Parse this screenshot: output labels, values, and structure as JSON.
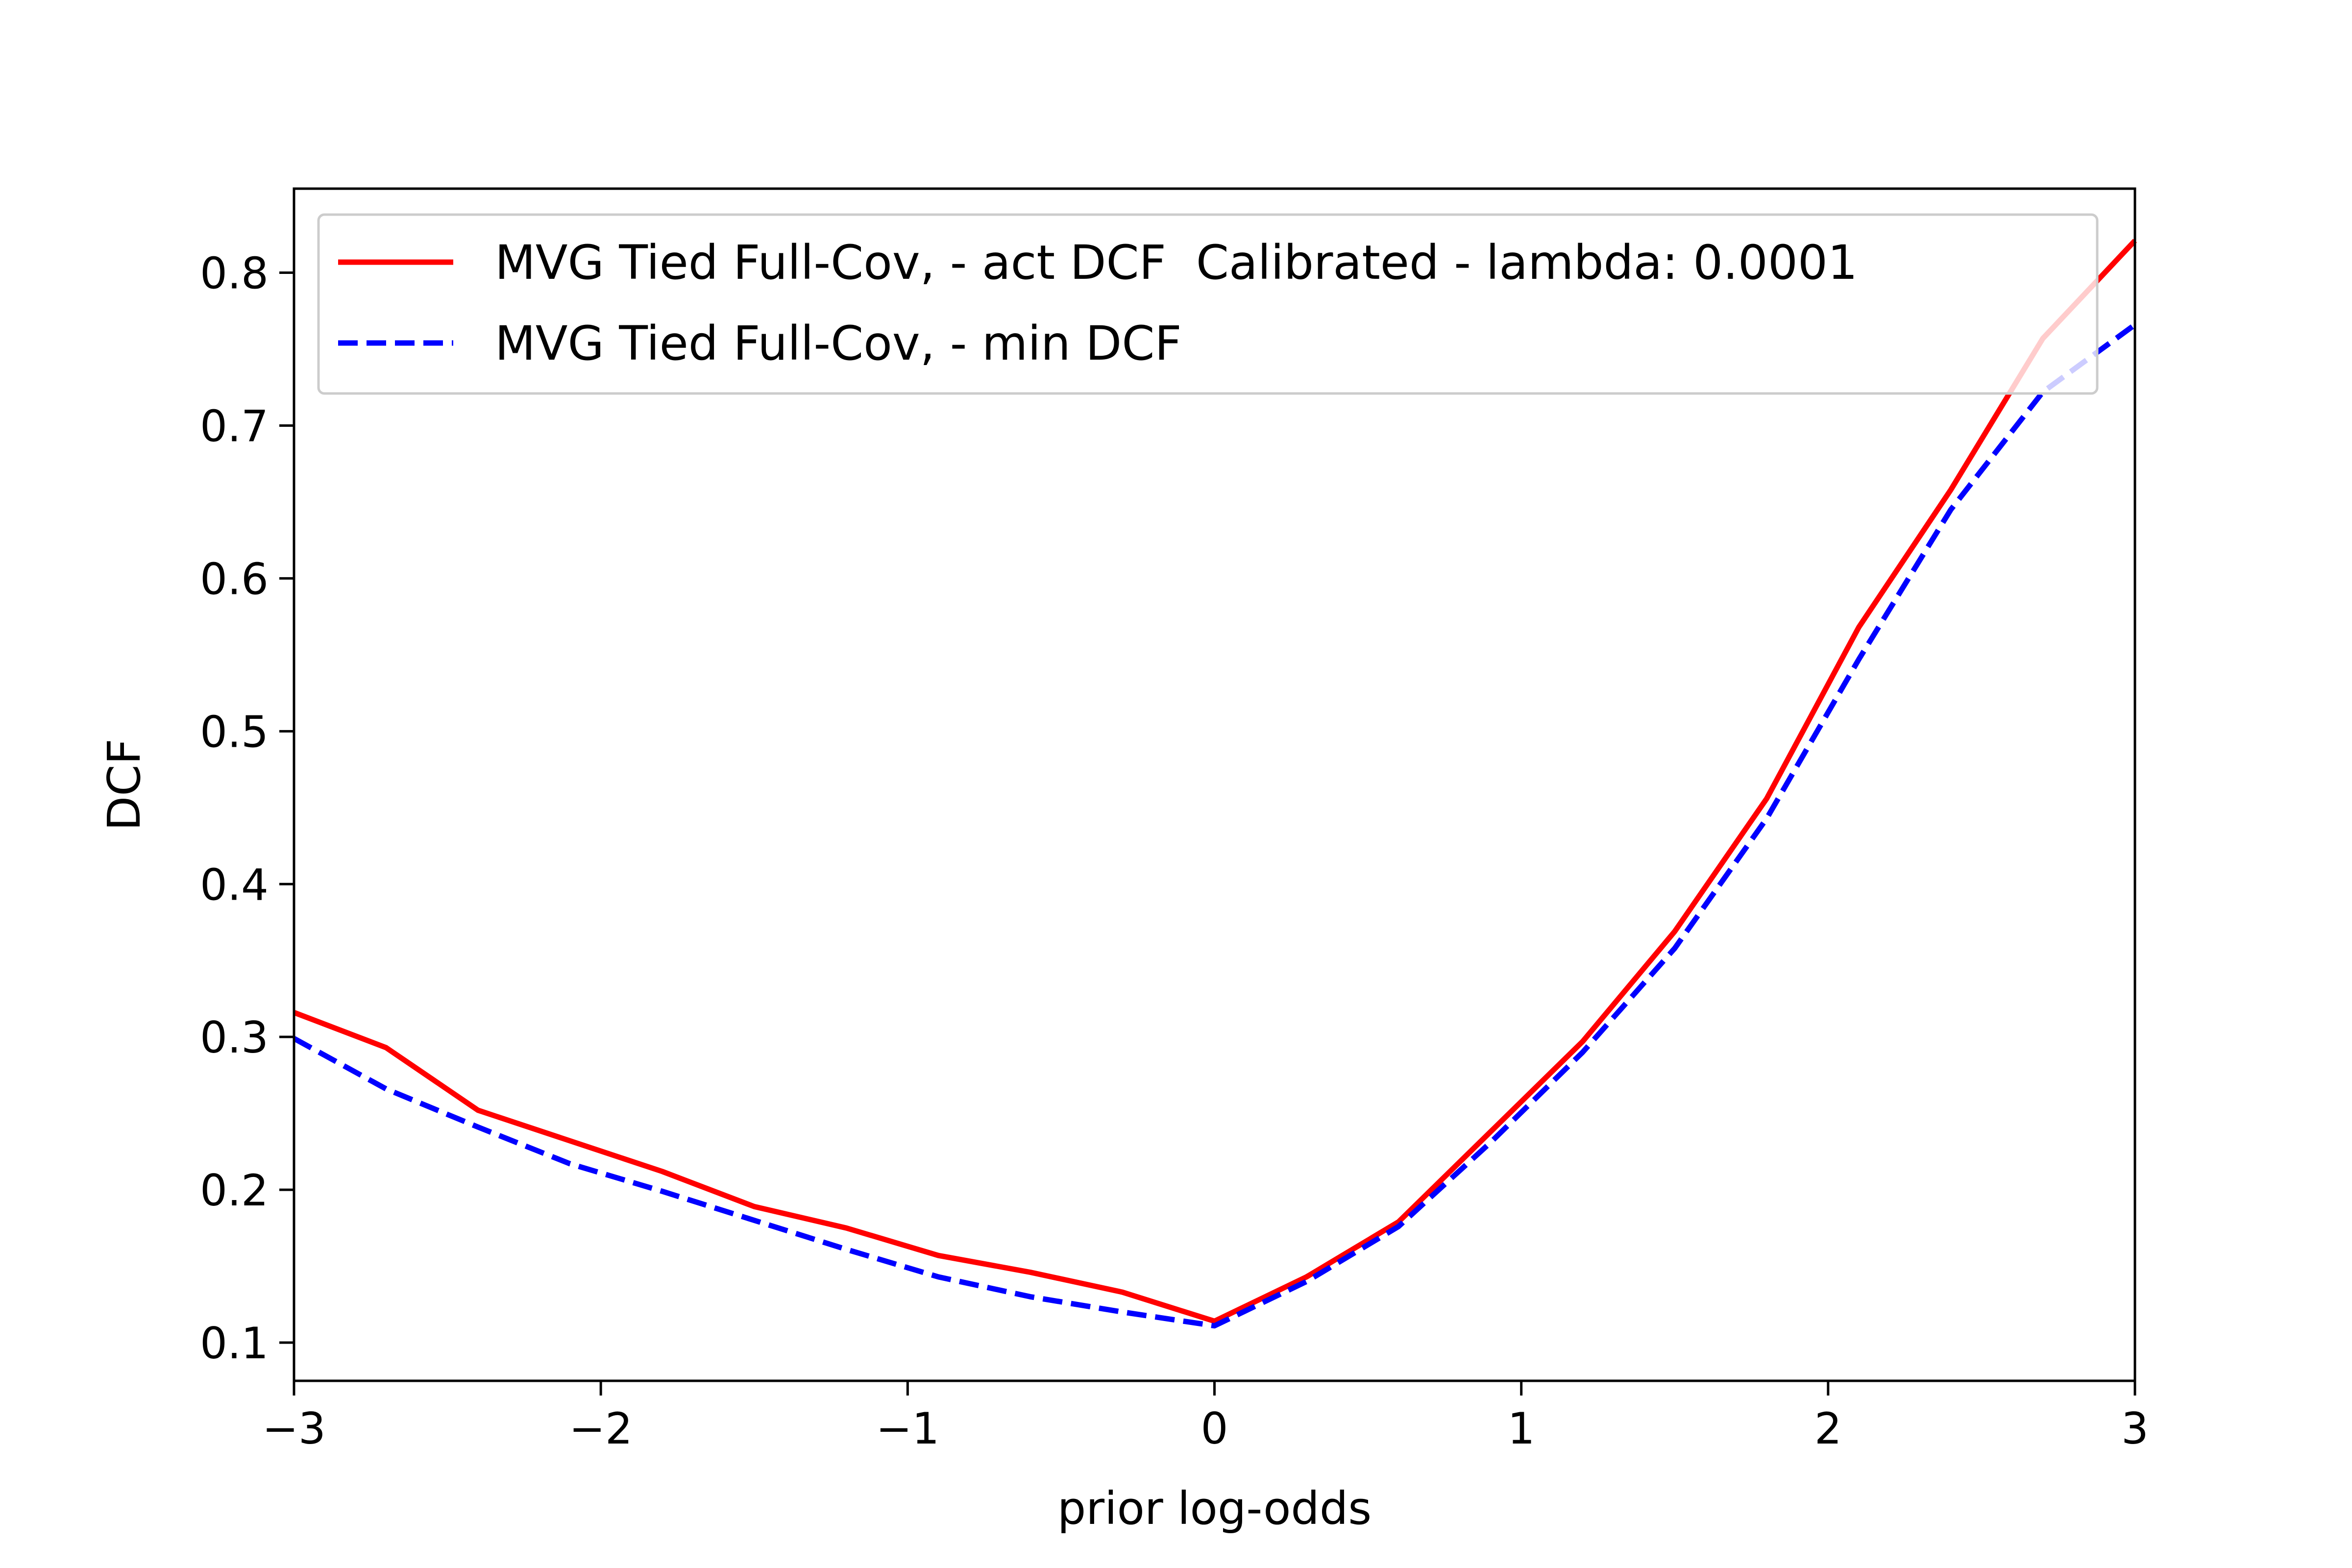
{
  "chart_data": {
    "type": "line",
    "title": "",
    "xlabel": "prior log-odds",
    "ylabel": "DCF",
    "xlim": [
      -3,
      3
    ],
    "ylim": [
      0.075,
      0.855
    ],
    "xticks": [
      -3,
      -2,
      -1,
      0,
      1,
      2,
      3
    ],
    "xtick_labels": [
      "−3",
      "−2",
      "−1",
      "0",
      "1",
      "2",
      "3"
    ],
    "yticks": [
      0.1,
      0.2,
      0.3,
      0.4,
      0.5,
      0.6,
      0.7,
      0.8
    ],
    "ytick_labels": [
      "0.1",
      "0.2",
      "0.3",
      "0.4",
      "0.5",
      "0.6",
      "0.7",
      "0.8"
    ],
    "grid": false,
    "legend_position": "top",
    "x": [
      -3.0,
      -2.7,
      -2.4,
      -2.1,
      -1.8,
      -1.5,
      -1.2,
      -0.9,
      -0.6,
      -0.3,
      0.0,
      0.3,
      0.6,
      0.9,
      1.2,
      1.5,
      1.8,
      2.1,
      2.4,
      2.7,
      3.0
    ],
    "series": [
      {
        "name": "MVG Tied Full-Cov, - act DCF  Calibrated - lambda: 0.0001",
        "color": "#ff0000",
        "style": "solid",
        "values": [
          0.316,
          0.293,
          0.252,
          0.232,
          0.212,
          0.189,
          0.175,
          0.157,
          0.146,
          0.133,
          0.114,
          0.143,
          0.179,
          0.238,
          0.297,
          0.369,
          0.456,
          0.568,
          0.658,
          0.757,
          0.821
        ]
      },
      {
        "name": "MVG Tied Full-Cov, - min DCF",
        "color": "#0000ff",
        "style": "dashed",
        "values": [
          0.299,
          0.266,
          0.241,
          0.217,
          0.199,
          0.18,
          0.161,
          0.143,
          0.13,
          0.12,
          0.111,
          0.14,
          0.176,
          0.231,
          0.29,
          0.358,
          0.443,
          0.547,
          0.645,
          0.722,
          0.766
        ]
      }
    ]
  }
}
